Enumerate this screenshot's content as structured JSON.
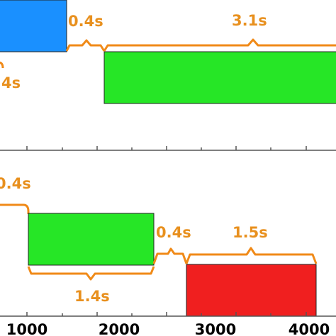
{
  "colors": {
    "bracket": "#f08a18",
    "blue": "#1a90ff",
    "green": "#26e626",
    "red": "#f01f1f",
    "axis": "#555555",
    "text_orange": "#e8901e"
  },
  "top_panel": {
    "durations": {
      "left_partial": "4s",
      "gap": "0.4s",
      "green": "3.1s"
    }
  },
  "bottom_panel": {
    "durations": {
      "lead": "0.4s",
      "green": "1.4s",
      "gap": "0.4s",
      "red": "1.5s"
    },
    "axis_ticks": [
      "1000",
      "2000",
      "3000",
      "4000"
    ]
  }
}
